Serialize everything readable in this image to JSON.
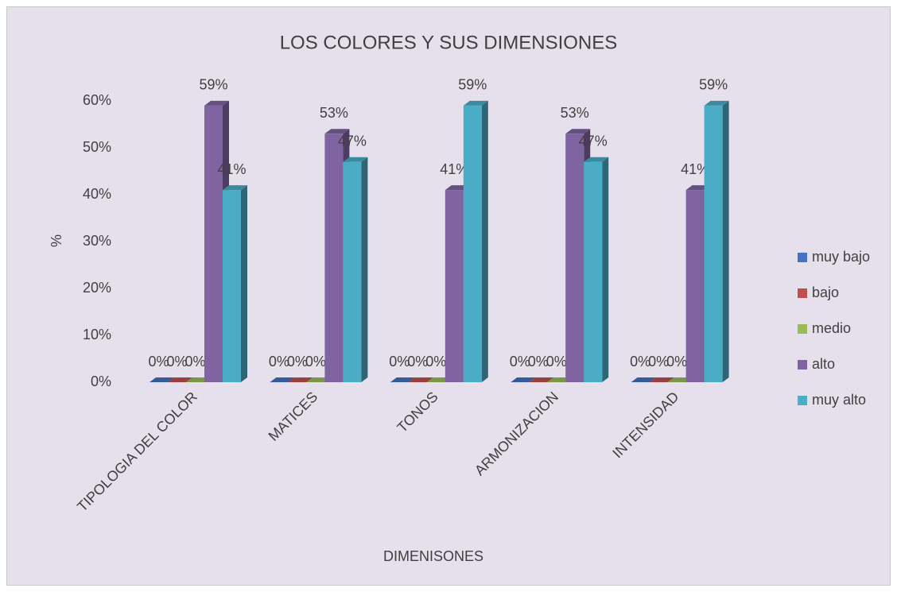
{
  "chart_data": {
    "type": "bar3d",
    "title": "LOS COLORES Y SUS DIMENSIONES",
    "x_label": "DIMENISONES",
    "y_label": "%",
    "categories": [
      "TIPOLOGIA DEL COLOR",
      "MATICES",
      "TONOS",
      "ARMONIZACION",
      "INTENSIDAD"
    ],
    "series": [
      {
        "name": "muy bajo",
        "color": "#4472c4",
        "values": [
          0,
          0,
          0,
          0,
          0
        ],
        "value_labels": [
          "0%",
          "0%",
          "0%",
          "0%",
          "0%"
        ]
      },
      {
        "name": "bajo",
        "color": "#c0504d",
        "values": [
          0,
          0,
          0,
          0,
          0
        ],
        "value_labels": [
          "0%",
          "0%",
          "0%",
          "0%",
          "0%"
        ]
      },
      {
        "name": "medio",
        "color": "#9bbb59",
        "values": [
          0,
          0,
          0,
          0,
          0
        ],
        "value_labels": [
          "0%",
          "0%",
          "0%",
          "0%",
          "0%"
        ]
      },
      {
        "name": "alto",
        "color": "#8064a2",
        "values": [
          59,
          53,
          41,
          53,
          41
        ],
        "value_labels": [
          "59%",
          "53%",
          "41%",
          "53%",
          "41%"
        ]
      },
      {
        "name": "muy alto",
        "color": "#4bacc6",
        "values": [
          41,
          47,
          59,
          47,
          59
        ],
        "value_labels": [
          "41%",
          "47%",
          "59%",
          "47%",
          "59%"
        ]
      }
    ],
    "ylim": [
      0,
      60
    ],
    "yticks": [
      {
        "value": 0,
        "label": "0%"
      },
      {
        "value": 10,
        "label": "10%"
      },
      {
        "value": 20,
        "label": "20%"
      },
      {
        "value": 30,
        "label": "30%"
      },
      {
        "value": 40,
        "label": "40%"
      },
      {
        "value": 50,
        "label": "50%"
      },
      {
        "value": 60,
        "label": "60%"
      }
    ],
    "legend": "right"
  }
}
